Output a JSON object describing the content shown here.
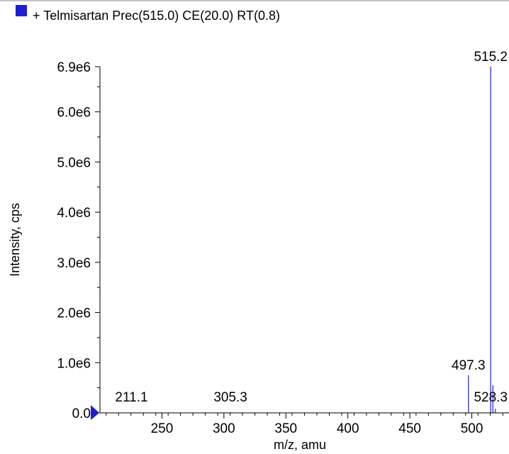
{
  "chart_data": {
    "type": "line",
    "series": [
      {
        "name": "+ Telmisartan Prec(515.0) CE(20.0) RT(0.8)",
        "color": "#1f1fd0",
        "peaks": [
          {
            "x": 211.1,
            "y": 8000
          },
          {
            "x": 305.3,
            "y": 12000
          },
          {
            "x": 497.3,
            "y": 750000
          },
          {
            "x": 515.2,
            "y": 6900000
          },
          {
            "x": 517.0,
            "y": 550000
          },
          {
            "x": 519.0,
            "y": 80000
          },
          {
            "x": 528.3,
            "y": 15000
          }
        ]
      }
    ],
    "peak_labels": [
      {
        "x": 211.1,
        "text": "211.1"
      },
      {
        "x": 305.3,
        "text": "305.3"
      },
      {
        "x": 497.3,
        "text": "497.3"
      },
      {
        "x": 515.2,
        "text": "515.2"
      },
      {
        "x": 528.3,
        "text": "528.3"
      }
    ],
    "xlabel": "m/z, amu",
    "ylabel": "Intensity, cps",
    "xlim": [
      200,
      530
    ],
    "ylim": [
      0,
      6900000
    ],
    "x_ticks": [
      {
        "value": 250,
        "label": "250"
      },
      {
        "value": 300,
        "label": "300"
      },
      {
        "value": 350,
        "label": "350"
      },
      {
        "value": 400,
        "label": "400"
      },
      {
        "value": 450,
        "label": "450"
      },
      {
        "value": 500,
        "label": "500"
      }
    ],
    "y_ticks": [
      {
        "value": 0,
        "label": "0.0"
      },
      {
        "value": 1000000,
        "label": "1.0e6"
      },
      {
        "value": 2000000,
        "label": "2.0e6"
      },
      {
        "value": 3000000,
        "label": "3.0e6"
      },
      {
        "value": 4000000,
        "label": "4.0e6"
      },
      {
        "value": 5000000,
        "label": "5.0e6"
      },
      {
        "value": 6000000,
        "label": "6.0e6"
      },
      {
        "value": 6900000,
        "label": "6.9e6"
      }
    ],
    "grid": false,
    "legend_position": "top-left"
  }
}
